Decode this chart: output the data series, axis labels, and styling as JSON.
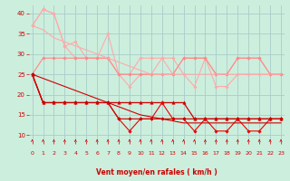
{
  "xlabel": "Vent moyen/en rafales ( km/h )",
  "x": [
    0,
    1,
    2,
    3,
    4,
    5,
    6,
    7,
    8,
    9,
    10,
    11,
    12,
    13,
    14,
    15,
    16,
    17,
    18,
    19,
    20,
    21,
    22,
    23
  ],
  "series": [
    {
      "name": "line1_light_top",
      "color": "#ffaaaa",
      "linewidth": 0.8,
      "marker": "D",
      "markersize": 1.8,
      "y": [
        37,
        41,
        40,
        32,
        33,
        29,
        29,
        35,
        25,
        25,
        29,
        29,
        29,
        25,
        29,
        29,
        29,
        25,
        25,
        29,
        29,
        29,
        25,
        25
      ]
    },
    {
      "name": "line2_light",
      "color": "#ffaaaa",
      "linewidth": 0.8,
      "marker": "D",
      "markersize": 1.8,
      "y": [
        37,
        41,
        40,
        32,
        29,
        29,
        29,
        29,
        25,
        22,
        25,
        25,
        29,
        29,
        25,
        22,
        29,
        22,
        22,
        25,
        25,
        25,
        25,
        25
      ]
    },
    {
      "name": "line3_medium",
      "color": "#ff8888",
      "linewidth": 0.8,
      "marker": "D",
      "markersize": 1.8,
      "y": [
        25,
        29,
        29,
        29,
        29,
        29,
        29,
        29,
        25,
        25,
        25,
        25,
        25,
        25,
        29,
        29,
        29,
        25,
        25,
        29,
        29,
        29,
        25,
        25
      ]
    },
    {
      "name": "line_diag_light",
      "color": "#ffaaaa",
      "linewidth": 0.8,
      "marker": null,
      "markersize": 0,
      "y": [
        37,
        36,
        34,
        33,
        32,
        31,
        30,
        29,
        28,
        27,
        26,
        25,
        25,
        25,
        25,
        25,
        25,
        25,
        25,
        25,
        25,
        25,
        25,
        25
      ]
    },
    {
      "name": "line4_red_triangle",
      "color": "#cc0000",
      "linewidth": 0.9,
      "marker": "^",
      "markersize": 2.5,
      "y": [
        25,
        18,
        18,
        18,
        18,
        18,
        18,
        18,
        18,
        18,
        18,
        18,
        18,
        18,
        18,
        14,
        14,
        14,
        14,
        14,
        14,
        14,
        14,
        14
      ]
    },
    {
      "name": "line5_red_diamond",
      "color": "#ee0000",
      "linewidth": 0.8,
      "marker": "D",
      "markersize": 1.8,
      "y": [
        25,
        18,
        18,
        18,
        18,
        18,
        18,
        18,
        14,
        11,
        14,
        14,
        18,
        14,
        14,
        11,
        14,
        11,
        11,
        14,
        11,
        11,
        14,
        14
      ]
    },
    {
      "name": "line6_red",
      "color": "#cc0000",
      "linewidth": 0.8,
      "marker": "D",
      "markersize": 1.8,
      "y": [
        25,
        18,
        18,
        18,
        18,
        18,
        18,
        18,
        14,
        14,
        14,
        14,
        14,
        14,
        14,
        14,
        14,
        14,
        14,
        14,
        14,
        14,
        14,
        14
      ]
    },
    {
      "name": "line7_red_diag",
      "color": "#cc0000",
      "linewidth": 0.8,
      "marker": null,
      "markersize": 0,
      "y": [
        25,
        24,
        23,
        22,
        21,
        20,
        19,
        18,
        17,
        16,
        15,
        14.5,
        14,
        13.5,
        13,
        13,
        13,
        13,
        13,
        13,
        13,
        13,
        13,
        13
      ]
    }
  ],
  "ylim": [
    8.5,
    42
  ],
  "xlim": [
    -0.3,
    23.3
  ],
  "yticks": [
    10,
    15,
    20,
    25,
    30,
    35,
    40
  ],
  "xticks": [
    0,
    1,
    2,
    3,
    4,
    5,
    6,
    7,
    8,
    9,
    10,
    11,
    12,
    13,
    14,
    15,
    16,
    17,
    18,
    19,
    20,
    21,
    22,
    23
  ],
  "bg_color": "#cceedd",
  "grid_color": "#aacccc",
  "tick_color": "#cc0000",
  "label_color": "#cc0000",
  "arrow_color": "#cc0000"
}
